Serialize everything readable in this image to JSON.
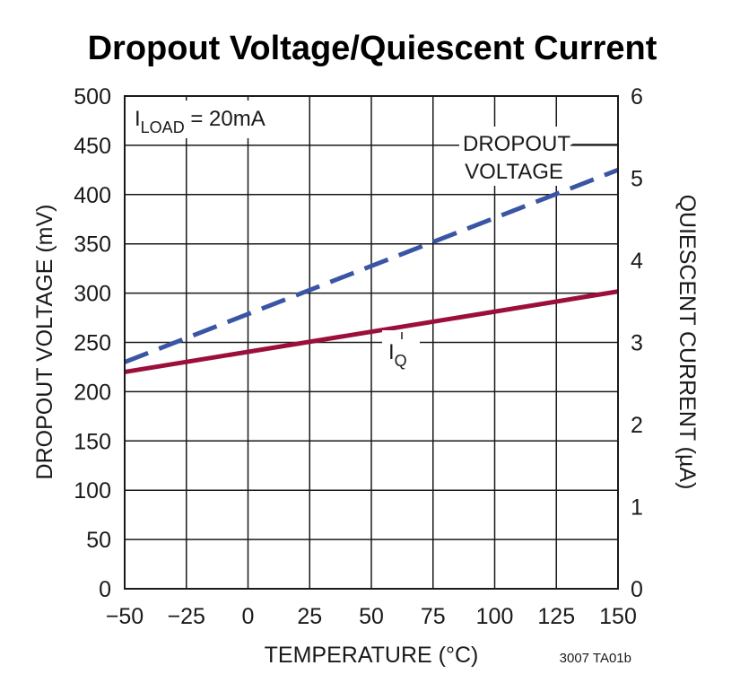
{
  "chart_data": {
    "type": "line",
    "title": "Dropout Voltage/Quiescent Current",
    "xlabel": "TEMPERATURE (°C)",
    "ylabel_left": "DROPOUT VOLTAGE (mV)",
    "ylabel_right": "QUIESCENT CURRENT (µA)",
    "xlim": [
      -50,
      150
    ],
    "ylim_left": [
      0,
      500
    ],
    "ylim_right": [
      0,
      6
    ],
    "x_ticks": [
      "−50",
      "−25",
      "0",
      "25",
      "50",
      "75",
      "100",
      "125",
      "150"
    ],
    "y_left_ticks": [
      "0",
      "50",
      "100",
      "150",
      "200",
      "250",
      "300",
      "350",
      "400",
      "450",
      "500"
    ],
    "y_right_ticks": [
      "0",
      "1",
      "2",
      "3",
      "4",
      "5",
      "6"
    ],
    "grid": true,
    "series": [
      {
        "name": "DROPOUT VOLTAGE",
        "axis": "left",
        "style": "dashed",
        "color": "#3a55a4",
        "x": [
          -50,
          150
        ],
        "y": [
          230,
          425
        ]
      },
      {
        "name": "IQ",
        "axis": "right",
        "style": "solid",
        "color": "#9b0f3a",
        "x": [
          -50,
          150
        ],
        "y": [
          2.64,
          3.62
        ]
      }
    ],
    "annotations": {
      "condition_main": "I",
      "condition_sub": "LOAD",
      "condition_rest": " = 20mA",
      "dropout_label_line1": "DROPOUT",
      "dropout_label_line2": "VOLTAGE",
      "iq_main": "I",
      "iq_sub": "Q"
    },
    "figure_code": "3007 TA01b"
  }
}
